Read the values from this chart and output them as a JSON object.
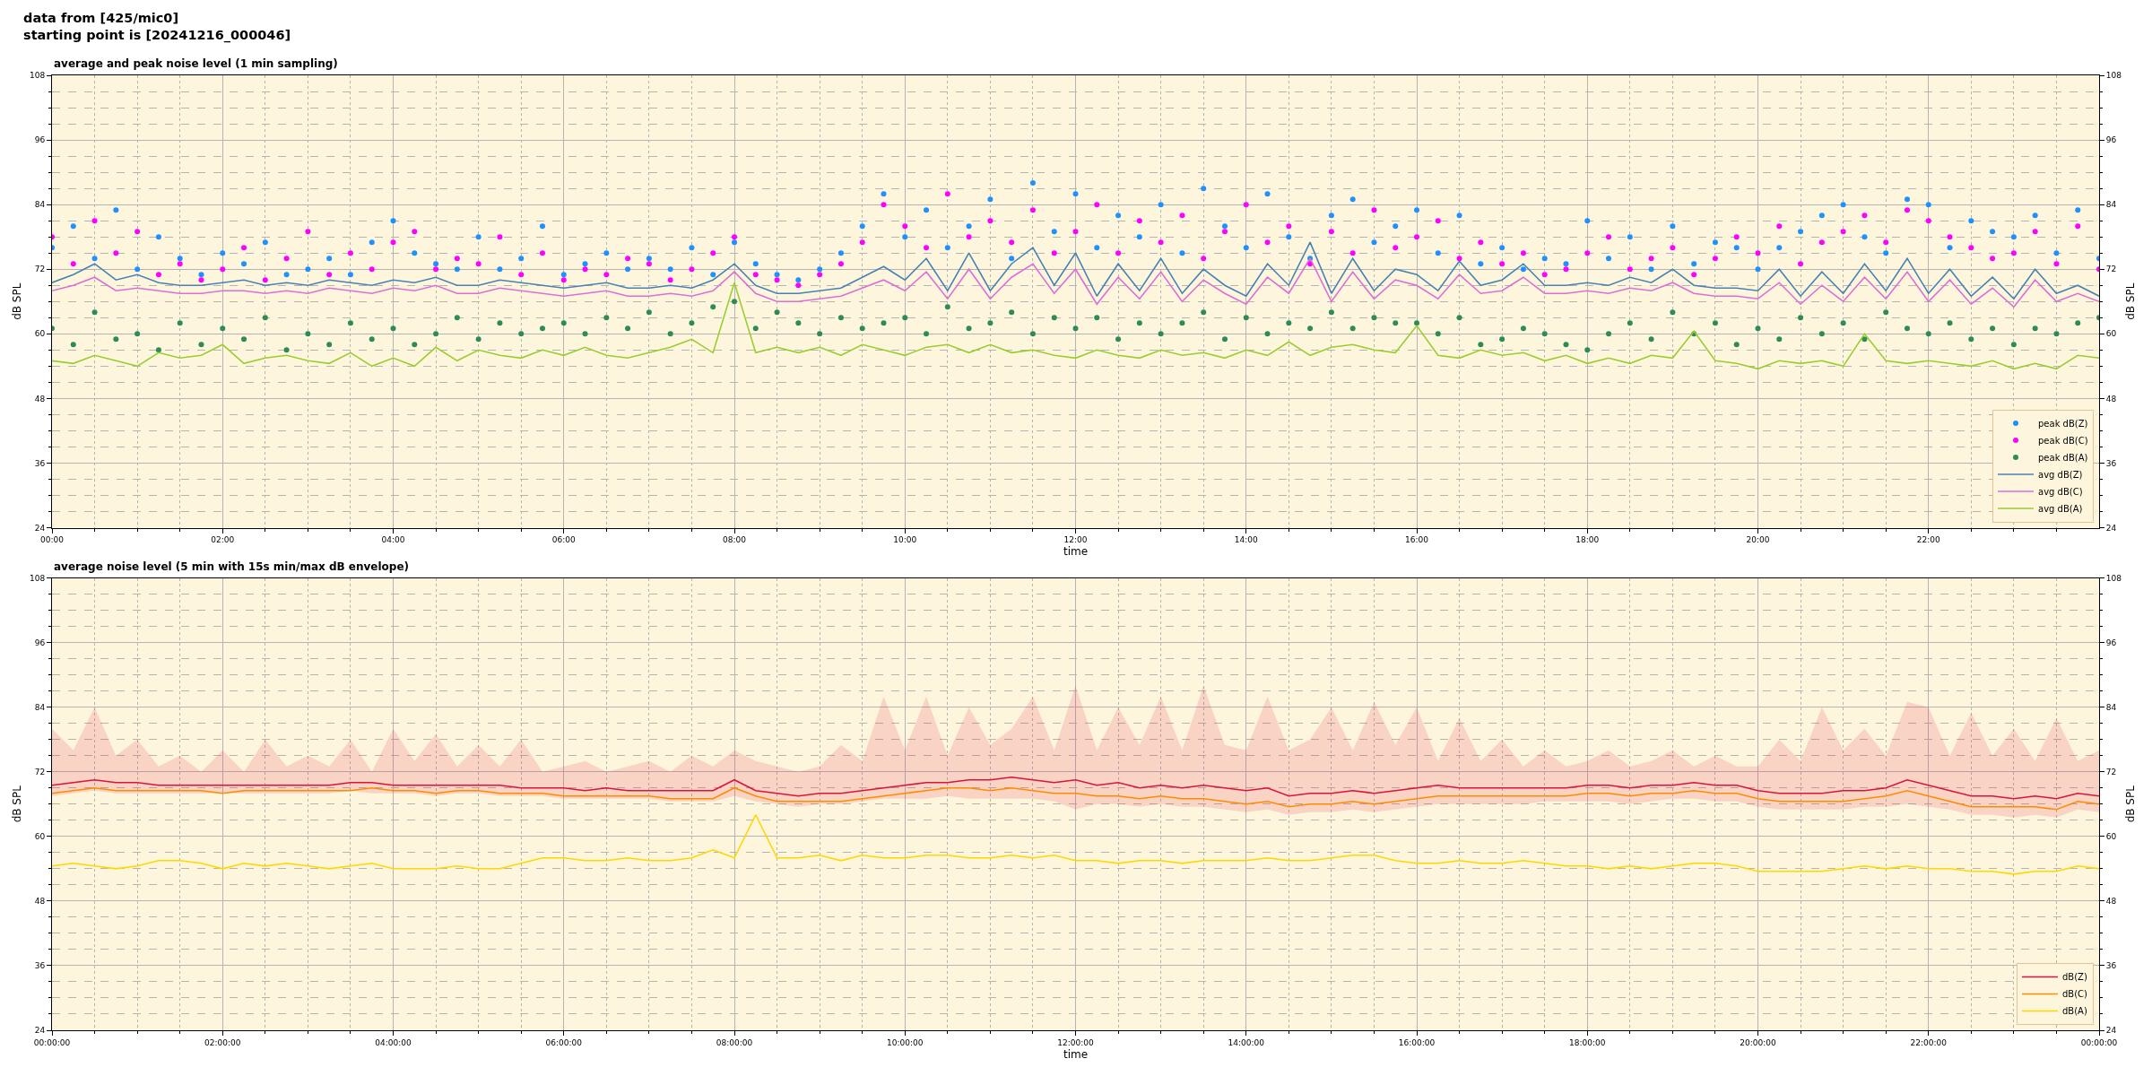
{
  "chart_data": [
    {
      "type": "line",
      "title": "average and peak noise level (1 min sampling)",
      "annotations": [
        "data from [425/mic0]\nstarting point is [20241216_000046]"
      ],
      "xlabel": "time",
      "ylabel": "dB SPL",
      "y2label": "dB SPL",
      "grid": true,
      "legend": "bottom right",
      "xlim": [
        0,
        24
      ],
      "xticks": [
        {
          "value": 0,
          "label": "00:00"
        },
        {
          "value": 0.5,
          "label": null
        },
        {
          "value": 1,
          "label": null
        },
        {
          "value": 1.5,
          "label": null
        },
        {
          "value": 2,
          "label": "02:00"
        },
        {
          "value": 2.5,
          "label": null
        },
        {
          "value": 3,
          "label": null
        },
        {
          "value": 3.5,
          "label": null
        },
        {
          "value": 4,
          "label": "04:00"
        },
        {
          "value": 4.5,
          "label": null
        },
        {
          "value": 5,
          "label": null
        },
        {
          "value": 5.5,
          "label": null
        },
        {
          "value": 6,
          "label": "06:00"
        },
        {
          "value": 6.5,
          "label": null
        },
        {
          "value": 7,
          "label": null
        },
        {
          "value": 7.5,
          "label": null
        },
        {
          "value": 8,
          "label": "08:00"
        },
        {
          "value": 8.5,
          "label": null
        },
        {
          "value": 9,
          "label": null
        },
        {
          "value": 9.5,
          "label": null
        },
        {
          "value": 10,
          "label": "10:00"
        },
        {
          "value": 10.5,
          "label": null
        },
        {
          "value": 11,
          "label": null
        },
        {
          "value": 11.5,
          "label": null
        },
        {
          "value": 12,
          "label": "12:00"
        },
        {
          "value": 12.5,
          "label": null
        },
        {
          "value": 13,
          "label": null
        },
        {
          "value": 13.5,
          "label": null
        },
        {
          "value": 14,
          "label": "14:00"
        },
        {
          "value": 14.5,
          "label": null
        },
        {
          "value": 15,
          "label": null
        },
        {
          "value": 15.5,
          "label": null
        },
        {
          "value": 16,
          "label": "16:00"
        },
        {
          "value": 16.5,
          "label": null
        },
        {
          "value": 17,
          "label": null
        },
        {
          "value": 17.5,
          "label": null
        },
        {
          "value": 18,
          "label": "18:00"
        },
        {
          "value": 18.5,
          "label": null
        },
        {
          "value": 19,
          "label": null
        },
        {
          "value": 19.5,
          "label": null
        },
        {
          "value": 20,
          "label": "20:00"
        },
        {
          "value": 20.5,
          "label": null
        },
        {
          "value": 21,
          "label": null
        },
        {
          "value": 21.5,
          "label": null
        },
        {
          "value": 22,
          "label": "22:00"
        },
        {
          "value": 22.5,
          "label": null
        },
        {
          "value": 23,
          "label": null
        },
        {
          "value": 23.5,
          "label": null
        }
      ],
      "ylim": [
        24,
        108
      ],
      "yticks": [
        24,
        {
          "value": 27,
          "label": null
        },
        {
          "value": 30,
          "label": null
        },
        {
          "value": 33,
          "label": null
        },
        36,
        {
          "value": 39,
          "label": null
        },
        {
          "value": 42,
          "label": null
        },
        {
          "value": 45,
          "label": null
        },
        48,
        {
          "value": 51,
          "label": null
        },
        {
          "value": 54,
          "label": null
        },
        {
          "value": 57,
          "label": null
        },
        60,
        {
          "value": 63,
          "label": null
        },
        {
          "value": 66,
          "label": null
        },
        {
          "value": 69,
          "label": null
        },
        72,
        {
          "value": 75,
          "label": null
        },
        {
          "value": 78,
          "label": null
        },
        {
          "value": 81,
          "label": null
        },
        84,
        {
          "value": 87,
          "label": null
        },
        {
          "value": 90,
          "label": null
        },
        {
          "value": 93,
          "label": null
        },
        96,
        {
          "value": 99,
          "label": null
        },
        {
          "value": 102,
          "label": null
        },
        {
          "value": 105,
          "label": null
        },
        108
      ],
      "y2lim": [
        24,
        108
      ],
      "y2ticks": [
        24,
        {
          "value": 27,
          "label": null
        },
        {
          "value": 30,
          "label": null
        },
        {
          "value": 33,
          "label": null
        },
        36,
        {
          "value": 39,
          "label": null
        },
        {
          "value": 42,
          "label": null
        },
        {
          "value": 45,
          "label": null
        },
        48,
        {
          "value": 51,
          "label": null
        },
        {
          "value": 54,
          "label": null
        },
        {
          "value": 57,
          "label": null
        },
        60,
        {
          "value": 63,
          "label": null
        },
        {
          "value": 66,
          "label": null
        },
        {
          "value": 69,
          "label": null
        },
        72,
        {
          "value": 75,
          "label": null
        },
        {
          "value": 78,
          "label": null
        },
        {
          "value": 81,
          "label": null
        },
        84,
        {
          "value": 87,
          "label": null
        },
        {
          "value": 90,
          "label": null
        },
        {
          "value": 93,
          "label": null
        },
        96,
        {
          "value": 99,
          "label": null
        },
        {
          "value": 102,
          "label": null
        },
        {
          "value": 105,
          "label": null
        },
        108
      ],
      "x": [
        0,
        0.25,
        0.5,
        0.75,
        1,
        1.25,
        1.5,
        1.75,
        2,
        2.25,
        2.5,
        2.75,
        3,
        3.25,
        3.5,
        3.75,
        4,
        4.25,
        4.5,
        4.75,
        5,
        5.25,
        5.5,
        5.75,
        6,
        6.25,
        6.5,
        6.75,
        7,
        7.25,
        7.5,
        7.75,
        8,
        8.25,
        8.5,
        8.75,
        9,
        9.25,
        9.5,
        9.75,
        10,
        10.25,
        10.5,
        10.75,
        11,
        11.25,
        11.5,
        11.75,
        12,
        12.25,
        12.5,
        12.75,
        13,
        13.25,
        13.5,
        13.75,
        14,
        14.25,
        14.5,
        14.75,
        15,
        15.25,
        15.5,
        15.75,
        16,
        16.25,
        16.5,
        16.75,
        17,
        17.25,
        17.5,
        17.75,
        18,
        18.25,
        18.5,
        18.75,
        19,
        19.25,
        19.5,
        19.75,
        20,
        20.25,
        20.5,
        20.75,
        21,
        21.25,
        21.5,
        21.75,
        22,
        22.25,
        22.5,
        22.75,
        23,
        23.25,
        23.5,
        23.75,
        24
      ],
      "series": [
        {
          "name": "peak dB(Z)",
          "type": "scatter",
          "marker": "circle",
          "color": "#1e90ff",
          "values": [
            76,
            80,
            74,
            83,
            72,
            78,
            74,
            71,
            75,
            73,
            77,
            71,
            72,
            74,
            71,
            77,
            81,
            75,
            73,
            72,
            78,
            72,
            74,
            80,
            71,
            73,
            75,
            72,
            74,
            72,
            76,
            71,
            77,
            73,
            71,
            70,
            72,
            75,
            80,
            86,
            78,
            83,
            76,
            80,
            85,
            74,
            88,
            79,
            86,
            76,
            82,
            78,
            84,
            75,
            87,
            80,
            76,
            86,
            78,
            74,
            82,
            85,
            77,
            80,
            83,
            75,
            82,
            73,
            76,
            72,
            74,
            73,
            81,
            74,
            78,
            72,
            80,
            73,
            77,
            76,
            72,
            76,
            79,
            82,
            84,
            78,
            75,
            85,
            84,
            76,
            81,
            79,
            78,
            82,
            75,
            83,
            74
          ]
        },
        {
          "name": "peak dB(C)",
          "type": "scatter",
          "marker": "circle",
          "color": "#ff00ff",
          "values": [
            78,
            73,
            81,
            75,
            79,
            71,
            73,
            70,
            72,
            76,
            70,
            74,
            79,
            71,
            75,
            72,
            77,
            79,
            72,
            74,
            73,
            78,
            71,
            75,
            70,
            72,
            71,
            74,
            73,
            70,
            72,
            75,
            78,
            71,
            70,
            69,
            71,
            73,
            77,
            84,
            80,
            76,
            86,
            78,
            81,
            77,
            83,
            75,
            79,
            84,
            75,
            81,
            77,
            82,
            74,
            79,
            84,
            77,
            80,
            73,
            79,
            75,
            83,
            76,
            78,
            81,
            74,
            77,
            73,
            75,
            71,
            72,
            75,
            78,
            72,
            74,
            76,
            71,
            74,
            78,
            75,
            80,
            73,
            77,
            79,
            82,
            77,
            83,
            81,
            78,
            76,
            74,
            75,
            79,
            73,
            80,
            72
          ]
        },
        {
          "name": "peak dB(A)",
          "type": "scatter",
          "marker": "circle",
          "color": "#2e8b57",
          "values": [
            61,
            58,
            64,
            59,
            60,
            57,
            62,
            58,
            61,
            59,
            63,
            57,
            60,
            58,
            62,
            59,
            61,
            58,
            60,
            63,
            59,
            62,
            60,
            61,
            62,
            60,
            63,
            61,
            64,
            60,
            62,
            65,
            66,
            61,
            64,
            62,
            60,
            63,
            61,
            62,
            63,
            60,
            65,
            61,
            62,
            64,
            60,
            63,
            61,
            63,
            59,
            62,
            60,
            62,
            64,
            59,
            63,
            60,
            62,
            61,
            64,
            61,
            63,
            62,
            62,
            60,
            63,
            58,
            59,
            61,
            60,
            58,
            57,
            60,
            62,
            59,
            64,
            60,
            62,
            58,
            61,
            59,
            63,
            60,
            62,
            59,
            64,
            61,
            60,
            62,
            59,
            61,
            58,
            61,
            60,
            62,
            63
          ]
        },
        {
          "name": "avg dB(Z)",
          "color": "#4682b4",
          "values": [
            69.5,
            71,
            73,
            70,
            71,
            69.5,
            69,
            69,
            69.5,
            70,
            69,
            69.5,
            69,
            70,
            69.5,
            69,
            70,
            69.5,
            70.5,
            69,
            69,
            70,
            69.5,
            69,
            68.5,
            69,
            69.5,
            68.5,
            68.5,
            69,
            68.5,
            70,
            73,
            69,
            67.5,
            67.5,
            68,
            68.5,
            70.5,
            72.5,
            70,
            74,
            68,
            75,
            68,
            73,
            76,
            69,
            75,
            67,
            73,
            68,
            74,
            67.5,
            72,
            69,
            67,
            73,
            69,
            77,
            67.5,
            74,
            68,
            72,
            71,
            68,
            73.5,
            69,
            70,
            73,
            69,
            69,
            69.5,
            69,
            70.5,
            69.5,
            72,
            69,
            68.5,
            68.5,
            68,
            72,
            67,
            71.5,
            67.5,
            73,
            68,
            74,
            67.5,
            72,
            67,
            70.5,
            66.5,
            72,
            67.5,
            69,
            67
          ]
        },
        {
          "name": "avg dB(C)",
          "color": "#da70d6",
          "values": [
            68,
            69,
            70.5,
            68,
            68.5,
            68,
            67.5,
            67.5,
            68,
            68,
            67.5,
            68,
            67.5,
            68.5,
            68,
            67.5,
            68.5,
            68,
            69,
            67.5,
            67.5,
            68.5,
            68,
            67.5,
            67,
            67.5,
            68,
            67,
            67,
            67.5,
            67,
            68,
            71.5,
            67.5,
            66,
            66,
            66.5,
            67,
            68.5,
            70,
            68,
            71.5,
            66.5,
            72,
            66.5,
            70.5,
            73,
            67.5,
            72,
            65.5,
            70.5,
            66.5,
            71.5,
            66,
            70,
            67.5,
            65.5,
            70.5,
            67.5,
            74,
            66,
            71.5,
            66.5,
            70,
            69,
            66.5,
            71,
            67.5,
            68,
            70.5,
            67.5,
            67.5,
            68,
            67.5,
            68.5,
            68,
            69.5,
            67.5,
            67,
            67,
            66.5,
            69.5,
            65.5,
            69,
            66,
            70.5,
            66.5,
            71.5,
            66,
            70,
            65.5,
            68.5,
            65,
            70,
            66,
            67.5,
            66
          ]
        },
        {
          "name": "avg dB(A)",
          "color": "#9acd32",
          "values": [
            55,
            54.5,
            56,
            55,
            54,
            56.5,
            55.5,
            56,
            58,
            54.5,
            55.5,
            56,
            55,
            54.5,
            56.5,
            54,
            55.5,
            54,
            57.5,
            55,
            57,
            56,
            55.5,
            57,
            56,
            57.5,
            56,
            55.5,
            56.5,
            57.5,
            59,
            56.5,
            69.5,
            56.5,
            57.5,
            56.5,
            57.5,
            56,
            58,
            57,
            56,
            57.5,
            58,
            56.5,
            58,
            56.5,
            57,
            56,
            55.5,
            57,
            56,
            55.5,
            57,
            56,
            56.5,
            55.5,
            57,
            56,
            58.5,
            56,
            57.5,
            58,
            57,
            56.5,
            61.5,
            56,
            55.5,
            57,
            56,
            56.5,
            55,
            56,
            54.5,
            55.5,
            54.5,
            56,
            55.5,
            60.5,
            55,
            54.5,
            53.5,
            55,
            54.5,
            55,
            54,
            60,
            55,
            54.5,
            55,
            54.5,
            54,
            55,
            53.5,
            54.5,
            53.5,
            56,
            55.5
          ]
        }
      ]
    },
    {
      "type": "line",
      "title": "average noise level (5 min with 15s min/max dB envelope)",
      "xlabel": "time",
      "ylabel": "dB SPL",
      "y2label": "dB SPL",
      "grid": true,
      "legend": "bottom right",
      "xlim": [
        "2024-12-16T00:00",
        "2024-12-17T00:00"
      ],
      "xticks": [
        {
          "value": "2024-12-16T00:00",
          "label": "00:00:00"
        },
        {
          "value": "2024-12-16T00:30",
          "label": null
        },
        {
          "value": "2024-12-16T01:00",
          "label": null
        },
        {
          "value": "2024-12-16T01:30",
          "label": null
        },
        {
          "value": "2024-12-16T02:00",
          "label": "02:00:00"
        },
        {
          "value": "2024-12-16T02:30",
          "label": null
        },
        {
          "value": "2024-12-16T03:00",
          "label": null
        },
        {
          "value": "2024-12-16T03:30",
          "label": null
        },
        {
          "value": "2024-12-16T04:00",
          "label": "04:00:00"
        },
        {
          "value": "2024-12-16T04:30",
          "label": null
        },
        {
          "value": "2024-12-16T05:00",
          "label": null
        },
        {
          "value": "2024-12-16T05:30",
          "label": null
        },
        {
          "value": "2024-12-16T06:00",
          "label": "06:00:00"
        },
        {
          "value": "2024-12-16T06:30",
          "label": null
        },
        {
          "value": "2024-12-16T07:00",
          "label": null
        },
        {
          "value": "2024-12-16T07:30",
          "label": null
        },
        {
          "value": "2024-12-16T08:00",
          "label": "08:00:00"
        },
        {
          "value": "2024-12-16T08:30",
          "label": null
        },
        {
          "value": "2024-12-16T09:00",
          "label": null
        },
        {
          "value": "2024-12-16T09:30",
          "label": null
        },
        {
          "value": "2024-12-16T10:00",
          "label": "10:00:00"
        },
        {
          "value": "2024-12-16T10:30",
          "label": null
        },
        {
          "value": "2024-12-16T11:00",
          "label": null
        },
        {
          "value": "2024-12-16T11:30",
          "label": null
        },
        {
          "value": "2024-12-16T12:00",
          "label": "12:00:00"
        },
        {
          "value": "2024-12-16T12:30",
          "label": null
        },
        {
          "value": "2024-12-16T13:00",
          "label": null
        },
        {
          "value": "2024-12-16T13:30",
          "label": null
        },
        {
          "value": "2024-12-16T14:00",
          "label": "14:00:00"
        },
        {
          "value": "2024-12-16T14:30",
          "label": null
        },
        {
          "value": "2024-12-16T15:00",
          "label": null
        },
        {
          "value": "2024-12-16T15:30",
          "label": null
        },
        {
          "value": "2024-12-16T16:00",
          "label": "16:00:00"
        },
        {
          "value": "2024-12-16T16:30",
          "label": null
        },
        {
          "value": "2024-12-16T17:00",
          "label": null
        },
        {
          "value": "2024-12-16T17:30",
          "label": null
        },
        {
          "value": "2024-12-16T18:00",
          "label": "18:00:00"
        },
        {
          "value": "2024-12-16T18:30",
          "label": null
        },
        {
          "value": "2024-12-16T19:00",
          "label": null
        },
        {
          "value": "2024-12-16T19:30",
          "label": null
        },
        {
          "value": "2024-12-16T20:00",
          "label": "20:00:00"
        },
        {
          "value": "2024-12-16T20:30",
          "label": null
        },
        {
          "value": "2024-12-16T21:00",
          "label": null
        },
        {
          "value": "2024-12-16T21:30",
          "label": null
        },
        {
          "value": "2024-12-16T22:00",
          "label": "22:00:00"
        },
        {
          "value": "2024-12-16T22:30",
          "label": null
        },
        {
          "value": "2024-12-16T23:00",
          "label": null
        },
        {
          "value": "2024-12-16T23:30",
          "label": null
        },
        {
          "value": "2024-12-17T00:00",
          "label": "00:00:00"
        }
      ],
      "ylim": [
        24,
        108
      ],
      "yticks": [
        24,
        {
          "value": 27,
          "label": null
        },
        {
          "value": 30,
          "label": null
        },
        {
          "value": 33,
          "label": null
        },
        36,
        {
          "value": 39,
          "label": null
        },
        {
          "value": 42,
          "label": null
        },
        {
          "value": 45,
          "label": null
        },
        48,
        {
          "value": 51,
          "label": null
        },
        {
          "value": 54,
          "label": null
        },
        {
          "value": 57,
          "label": null
        },
        60,
        {
          "value": 63,
          "label": null
        },
        {
          "value": 66,
          "label": null
        },
        {
          "value": 69,
          "label": null
        },
        72,
        {
          "value": 75,
          "label": null
        },
        {
          "value": 78,
          "label": null
        },
        {
          "value": 81,
          "label": null
        },
        84,
        {
          "value": 87,
          "label": null
        },
        {
          "value": 90,
          "label": null
        },
        {
          "value": 93,
          "label": null
        },
        96,
        {
          "value": 99,
          "label": null
        },
        {
          "value": 102,
          "label": null
        },
        {
          "value": 105,
          "label": null
        },
        108
      ],
      "y2lim": [
        24,
        108
      ],
      "y2ticks": [
        24,
        {
          "value": 27,
          "label": null
        },
        {
          "value": 30,
          "label": null
        },
        {
          "value": 33,
          "label": null
        },
        36,
        {
          "value": 39,
          "label": null
        },
        {
          "value": 42,
          "label": null
        },
        {
          "value": 45,
          "label": null
        },
        48,
        {
          "value": 51,
          "label": null
        },
        {
          "value": 54,
          "label": null
        },
        {
          "value": 57,
          "label": null
        },
        60,
        {
          "value": 63,
          "label": null
        },
        {
          "value": 66,
          "label": null
        },
        {
          "value": 69,
          "label": null
        },
        72,
        {
          "value": 75,
          "label": null
        },
        {
          "value": 78,
          "label": null
        },
        {
          "value": 81,
          "label": null
        },
        84,
        {
          "value": 87,
          "label": null
        },
        {
          "value": 90,
          "label": null
        },
        {
          "value": 93,
          "label": null
        },
        96,
        {
          "value": 99,
          "label": null
        },
        {
          "value": 102,
          "label": null
        },
        {
          "value": 105,
          "label": null
        },
        108
      ],
      "x": [
        "2024-12-16T00:00",
        "2024-12-16T00:15",
        "2024-12-16T00:30",
        "2024-12-16T00:45",
        "2024-12-16T01:00",
        "2024-12-16T01:15",
        "2024-12-16T01:30",
        "2024-12-16T01:45",
        "2024-12-16T02:00",
        "2024-12-16T02:15",
        "2024-12-16T02:30",
        "2024-12-16T02:45",
        "2024-12-16T03:00",
        "2024-12-16T03:15",
        "2024-12-16T03:30",
        "2024-12-16T03:45",
        "2024-12-16T04:00",
        "2024-12-16T04:15",
        "2024-12-16T04:30",
        "2024-12-16T04:45",
        "2024-12-16T05:00",
        "2024-12-16T05:15",
        "2024-12-16T05:30",
        "2024-12-16T05:45",
        "2024-12-16T06:00",
        "2024-12-16T06:15",
        "2024-12-16T06:30",
        "2024-12-16T06:45",
        "2024-12-16T07:00",
        "2024-12-16T07:15",
        "2024-12-16T07:30",
        "2024-12-16T07:45",
        "2024-12-16T08:00",
        "2024-12-16T08:15",
        "2024-12-16T08:30",
        "2024-12-16T08:45",
        "2024-12-16T09:00",
        "2024-12-16T09:15",
        "2024-12-16T09:30",
        "2024-12-16T09:45",
        "2024-12-16T10:00",
        "2024-12-16T10:15",
        "2024-12-16T10:30",
        "2024-12-16T10:45",
        "2024-12-16T11:00",
        "2024-12-16T11:15",
        "2024-12-16T11:30",
        "2024-12-16T11:45",
        "2024-12-16T12:00",
        "2024-12-16T12:15",
        "2024-12-16T12:30",
        "2024-12-16T12:45",
        "2024-12-16T13:00",
        "2024-12-16T13:15",
        "2024-12-16T13:30",
        "2024-12-16T13:45",
        "2024-12-16T14:00",
        "2024-12-16T14:15",
        "2024-12-16T14:30",
        "2024-12-16T14:45",
        "2024-12-16T15:00",
        "2024-12-16T15:15",
        "2024-12-16T15:30",
        "2024-12-16T15:45",
        "2024-12-16T16:00",
        "2024-12-16T16:15",
        "2024-12-16T16:30",
        "2024-12-16T16:45",
        "2024-12-16T17:00",
        "2024-12-16T17:15",
        "2024-12-16T17:30",
        "2024-12-16T17:45",
        "2024-12-16T18:00",
        "2024-12-16T18:15",
        "2024-12-16T18:30",
        "2024-12-16T18:45",
        "2024-12-16T19:00",
        "2024-12-16T19:15",
        "2024-12-16T19:30",
        "2024-12-16T19:45",
        "2024-12-16T20:00",
        "2024-12-16T20:15",
        "2024-12-16T20:30",
        "2024-12-16T20:45",
        "2024-12-16T21:00",
        "2024-12-16T21:15",
        "2024-12-16T21:30",
        "2024-12-16T21:45",
        "2024-12-16T22:00",
        "2024-12-16T22:15",
        "2024-12-16T22:30",
        "2024-12-16T22:45",
        "2024-12-16T23:00",
        "2024-12-16T23:15",
        "2024-12-16T23:30",
        "2024-12-16T23:45",
        "2024-12-17T00:00"
      ],
      "series": [
        {
          "name": "dB(Z)",
          "color": "#dc143c",
          "values": [
            69.5,
            70,
            70.5,
            70,
            70,
            69.5,
            69.5,
            69.5,
            69.5,
            69.5,
            69.5,
            69.5,
            69.5,
            69.5,
            70,
            70,
            69.5,
            69.5,
            69.5,
            69.5,
            69.5,
            69.5,
            69,
            69,
            69,
            68.5,
            69,
            68.5,
            68.5,
            68.5,
            68.5,
            68.5,
            70.5,
            68.5,
            68,
            67.5,
            68,
            68,
            68.5,
            69,
            69.5,
            70,
            70,
            70.5,
            70.5,
            71,
            70.5,
            70,
            70.5,
            69.5,
            70,
            69,
            69.5,
            69,
            69.5,
            69,
            68.5,
            69,
            67.5,
            68,
            68,
            68.5,
            68,
            68.5,
            69,
            69.5,
            69,
            69,
            69,
            69,
            69,
            69,
            69.5,
            69.5,
            69,
            69.5,
            69.5,
            70,
            69.5,
            69.5,
            68.5,
            68,
            68,
            68,
            68.5,
            68.5,
            69,
            70.5,
            69.5,
            68.5,
            67.5,
            67.5,
            67,
            67.5,
            67,
            68,
            67.5
          ],
          "lower": [
            67.5,
            68,
            68.5,
            68,
            68,
            68,
            68,
            68,
            68,
            68,
            68,
            68,
            68,
            68,
            68.5,
            68,
            68,
            68,
            67.5,
            68,
            68,
            67.5,
            67.5,
            67.5,
            67,
            67,
            67,
            67,
            67,
            66.5,
            66.5,
            66.5,
            67.5,
            66.5,
            66,
            65.5,
            66,
            66,
            66.5,
            67,
            67,
            67,
            67.5,
            67,
            67,
            67,
            67,
            66.5,
            65,
            66,
            66,
            65.5,
            66,
            65.5,
            65.5,
            65,
            64.5,
            65,
            64,
            64.5,
            64.5,
            65,
            64.5,
            65,
            65.5,
            66,
            66,
            66,
            66,
            66,
            66.5,
            66.5,
            66.5,
            66.5,
            66,
            66.5,
            67,
            67,
            66.5,
            66.5,
            65.5,
            65,
            65,
            65,
            65,
            65.5,
            65.5,
            66,
            65.5,
            65,
            64,
            64,
            63.5,
            64,
            63.5,
            65,
            64.5
          ],
          "upper": [
            80,
            76,
            84,
            75,
            78,
            73,
            75,
            72,
            76,
            72,
            78,
            73,
            75,
            73,
            78,
            72,
            80,
            74,
            79,
            73,
            77,
            73,
            78,
            72,
            73,
            74,
            72,
            73,
            74,
            72,
            75,
            73,
            76,
            74,
            73,
            72,
            73,
            77,
            74,
            86,
            76,
            86,
            75,
            84,
            77,
            80,
            86,
            76,
            88,
            76,
            84,
            77,
            86,
            76,
            88,
            77,
            76,
            86,
            76,
            78,
            84,
            76,
            85,
            77,
            84,
            74,
            82,
            74,
            78,
            73,
            76,
            73,
            74,
            76,
            73,
            74,
            76,
            73,
            75,
            73,
            73,
            78,
            74,
            84,
            76,
            80,
            75,
            85,
            84,
            75,
            83,
            75,
            80,
            74,
            82,
            74,
            76
          ]
        },
        {
          "name": "dB(C)",
          "color": "#ff8c00",
          "values": [
            68,
            68.5,
            69,
            68.5,
            68.5,
            68.5,
            68.5,
            68.5,
            68,
            68.5,
            68.5,
            68.5,
            68.5,
            68.5,
            68.5,
            69,
            68.5,
            68.5,
            68,
            68.5,
            68.5,
            68,
            68,
            68,
            67.5,
            67.5,
            67.5,
            67.5,
            67.5,
            67,
            67,
            67,
            69,
            67.5,
            66.5,
            66.5,
            66.5,
            66.5,
            67,
            67.5,
            68,
            68.5,
            69,
            69,
            68.5,
            69,
            68.5,
            68,
            68,
            67.5,
            67.5,
            67,
            67.5,
            67,
            67,
            66.5,
            66,
            66.5,
            65.5,
            66,
            66,
            66.5,
            66,
            66.5,
            67,
            67.5,
            67.5,
            67.5,
            67.5,
            67.5,
            67.5,
            67.5,
            68,
            68,
            67.5,
            68,
            68,
            68.5,
            68,
            68,
            67,
            66.5,
            66.5,
            66.5,
            66.5,
            67,
            67.5,
            68.5,
            67.5,
            66.5,
            65.5,
            65.5,
            65.5,
            65.5,
            65,
            66.5,
            66
          ]
        },
        {
          "name": "dB(A)",
          "color": "#ffd700",
          "values": [
            54.5,
            55,
            54.5,
            54,
            54.5,
            55.5,
            55.5,
            55,
            54,
            55,
            54.5,
            55,
            54.5,
            54,
            54.5,
            55,
            54,
            54,
            54,
            54.5,
            54,
            54,
            55,
            56,
            56,
            55.5,
            55.5,
            56,
            55.5,
            55.5,
            56,
            57.5,
            56,
            64,
            56,
            56,
            56.5,
            55.5,
            56.5,
            56,
            56,
            56.5,
            56.5,
            56,
            56,
            56.5,
            56,
            56.5,
            55.5,
            55.5,
            55,
            55.5,
            55.5,
            55,
            55.5,
            55.5,
            55.5,
            56,
            55.5,
            55.5,
            56,
            56.5,
            56.5,
            55.5,
            55,
            55,
            55.5,
            55,
            55,
            55.5,
            55,
            54.5,
            54.5,
            54,
            54.5,
            54,
            54.5,
            55,
            55,
            54.5,
            53.5,
            53.5,
            53.5,
            53.5,
            54,
            54.5,
            54,
            54.5,
            54,
            54,
            53.5,
            53.5,
            53,
            53.5,
            53.5,
            54.5,
            54
          ]
        }
      ]
    }
  ]
}
